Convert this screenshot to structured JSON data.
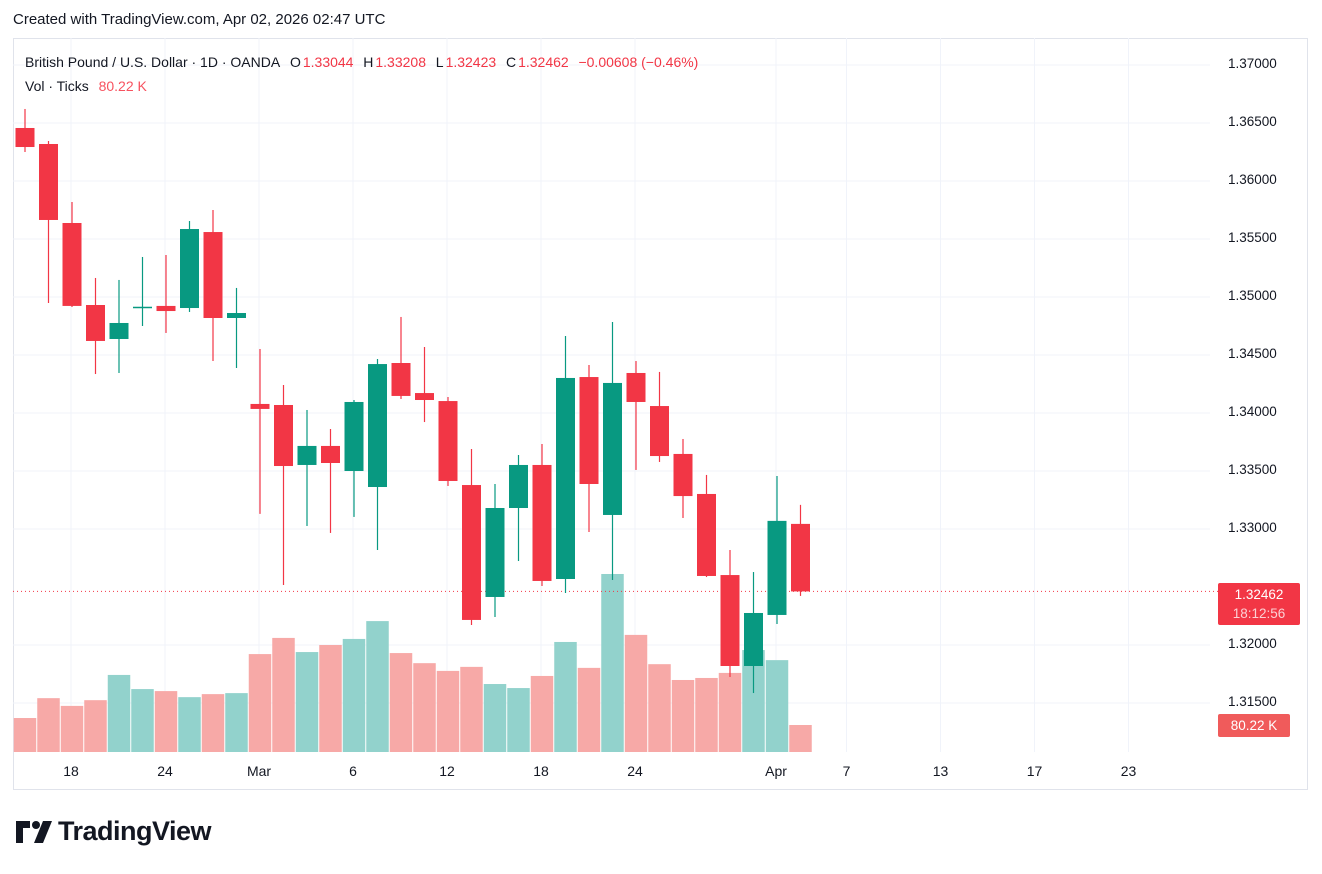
{
  "credit": "Created with TradingView.com, Apr 02, 2026 02:47 UTC",
  "legend": {
    "symbol": "British Pound / U.S. Dollar · 1D · OANDA",
    "o_label": "O",
    "o": "1.33044",
    "h_label": "H",
    "h": "1.33208",
    "l_label": "L",
    "l": "1.32423",
    "c_label": "C",
    "c": "1.32462",
    "change": "−0.00608 (−0.46%)",
    "vol_label": "Vol · Ticks",
    "vol": "80.22 K"
  },
  "last_price": {
    "price": "1.32462",
    "countdown": "18:12:56",
    "volume": "80.22 K"
  },
  "brand": "TradingView",
  "colors": {
    "up": "#089981",
    "down": "#f23645",
    "vol_up": "#92d2cc",
    "vol_down": "#f7a9a7"
  },
  "chart_data": {
    "type": "candlestick",
    "ylim": [
      1.3115,
      1.3745
    ],
    "grid": true,
    "y_ticks": [
      "1.37000",
      "1.36500",
      "1.36000",
      "1.35500",
      "1.35000",
      "1.34500",
      "1.34000",
      "1.33500",
      "1.33000",
      "1.32000",
      "1.31500"
    ],
    "x_ticks": [
      "18",
      "24",
      "Mar",
      "6",
      "12",
      "18",
      "24",
      "Apr",
      "7",
      "13",
      "17",
      "23"
    ],
    "x": [
      "2026-02-16",
      "2026-02-17",
      "2026-02-18",
      "2026-02-19",
      "2026-02-20",
      "2026-02-23",
      "2026-02-24",
      "2026-02-25",
      "2026-02-26",
      "2026-02-27",
      "2026-03-02",
      "2026-03-03",
      "2026-03-04",
      "2026-03-05",
      "2026-03-06",
      "2026-03-09",
      "2026-03-10",
      "2026-03-11",
      "2026-03-12",
      "2026-03-13",
      "2026-03-16",
      "2026-03-17",
      "2026-03-18",
      "2026-03-19",
      "2026-03-20",
      "2026-03-23",
      "2026-03-24",
      "2026-03-25",
      "2026-03-26",
      "2026-03-27",
      "2026-03-30",
      "2026-03-31",
      "2026-04-01",
      "2026-04-02"
    ],
    "ohlc": [
      [
        1.36457,
        1.36621,
        1.3625,
        1.36293
      ],
      [
        1.36319,
        1.36345,
        1.34948,
        1.35664
      ],
      [
        1.35638,
        1.35819,
        1.34914,
        1.34923
      ],
      [
        1.34931,
        1.35164,
        1.34336,
        1.34621
      ],
      [
        1.34638,
        1.35147,
        1.34345,
        1.34776
      ],
      [
        1.34914,
        1.35345,
        1.3475,
        1.34916
      ],
      [
        1.34923,
        1.35362,
        1.3469,
        1.34879
      ],
      [
        1.34905,
        1.35655,
        1.34871,
        1.35586
      ],
      [
        1.3556,
        1.3575,
        1.34448,
        1.34819
      ],
      [
        1.34819,
        1.35078,
        1.34388,
        1.34862
      ],
      [
        1.34078,
        1.34552,
        1.3313,
        1.34035
      ],
      [
        1.34069,
        1.34241,
        1.32517,
        1.33543
      ],
      [
        1.33552,
        1.34026,
        1.33026,
        1.33716
      ],
      [
        1.33716,
        1.33862,
        1.32966,
        1.33569
      ],
      [
        1.335,
        1.34112,
        1.33104,
        1.34095
      ],
      [
        1.33362,
        1.34466,
        1.32819,
        1.34422
      ],
      [
        1.34431,
        1.34828,
        1.34121,
        1.34147
      ],
      [
        1.34172,
        1.34569,
        1.33922,
        1.34112
      ],
      [
        1.34103,
        1.34138,
        1.33371,
        1.33414
      ],
      [
        1.33379,
        1.3369,
        1.32172,
        1.32216
      ],
      [
        1.32414,
        1.33388,
        1.32241,
        1.33181
      ],
      [
        1.33181,
        1.33638,
        1.32724,
        1.33552
      ],
      [
        1.33552,
        1.33733,
        1.32509,
        1.32552
      ],
      [
        1.32569,
        1.34664,
        1.32448,
        1.34302
      ],
      [
        1.3431,
        1.34414,
        1.32974,
        1.33388
      ],
      [
        1.33121,
        1.34785,
        1.3256,
        1.34259
      ],
      [
        1.34345,
        1.34448,
        1.33509,
        1.34095
      ],
      [
        1.3406,
        1.34354,
        1.33578,
        1.33629
      ],
      [
        1.33647,
        1.33776,
        1.33095,
        1.33284
      ],
      [
        1.33302,
        1.33466,
        1.32586,
        1.32595
      ],
      [
        1.32603,
        1.32819,
        1.31724,
        1.31819
      ],
      [
        1.31819,
        1.32629,
        1.31586,
        1.32276
      ],
      [
        1.32259,
        1.33457,
        1.32181,
        1.3307
      ],
      [
        1.33044,
        1.33208,
        1.32423,
        1.32462
      ]
    ],
    "volume_k": [
      101,
      160,
      137,
      154,
      229,
      187,
      181,
      163,
      172,
      175,
      291,
      339,
      297,
      318,
      336,
      389,
      294,
      264,
      241,
      253,
      202,
      190,
      226,
      327,
      250,
      529,
      348,
      261,
      214,
      220,
      235,
      303,
      273,
      80.22
    ]
  }
}
